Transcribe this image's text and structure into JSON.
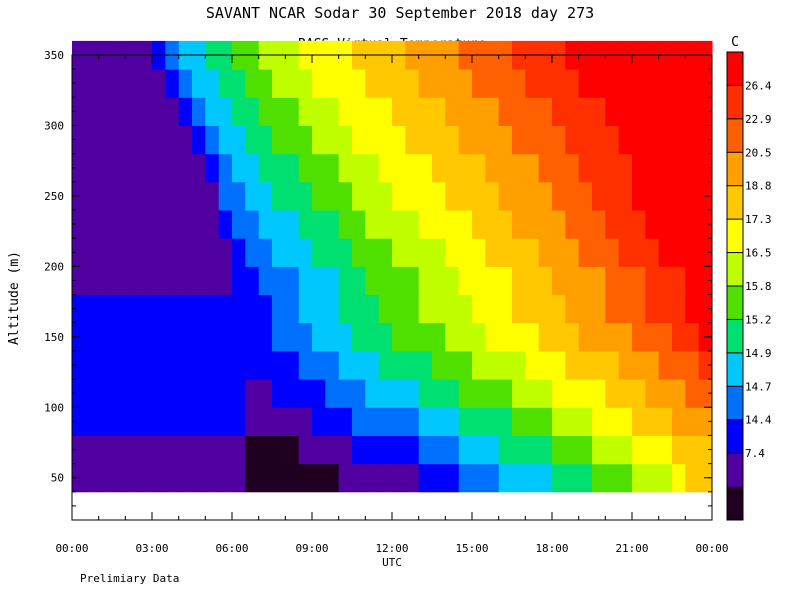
{
  "header": {
    "title": "SAVANT   NCAR Sodar   30 September 2018   day 273",
    "subtitle": "RASS Virtual Temperature"
  },
  "footer_note": "Prelimiary Data",
  "chart_data": {
    "type": "heatmap",
    "title": "RASS Virtual Temperature",
    "xlabel": "UTC",
    "ylabel": "Altitude (m)",
    "x_ticks": [
      "00:00",
      "03:00",
      "06:00",
      "09:00",
      "12:00",
      "15:00",
      "18:00",
      "21:00",
      "00:00"
    ],
    "xlim_hours": [
      0,
      24
    ],
    "y_ticks": [
      "50",
      "100",
      "150",
      "200",
      "250",
      "300",
      "350"
    ],
    "ylim": [
      20,
      350
    ],
    "colorbar": {
      "unit_label": "C",
      "tick_labels": [
        "26.4",
        "22.9",
        "20.5",
        "18.8",
        "17.3",
        "16.5",
        "15.8",
        "15.2",
        "14.9",
        "14.7",
        "14.4",
        "7.4"
      ],
      "colors": [
        "#ff0000",
        "#ff3000",
        "#ff6000",
        "#ffa000",
        "#ffc800",
        "#ffff00",
        "#c0ff00",
        "#50e000",
        "#00e070",
        "#00c8ff",
        "#0070ff",
        "#0000ff",
        "#5000a0",
        "#200020"
      ]
    },
    "grid": {
      "hour_step": 0.5,
      "altitudes": [
        40,
        60,
        80,
        100,
        120,
        140,
        160,
        180,
        200,
        220,
        240,
        260,
        280,
        300,
        320,
        340
      ],
      "values": [
        [
          12,
          12,
          12,
          12,
          12,
          12,
          12,
          12,
          12,
          12,
          12,
          12,
          12,
          13,
          13,
          13,
          13,
          13,
          13,
          13,
          12,
          12,
          12,
          12,
          12,
          12,
          11,
          11,
          11,
          10,
          10,
          10,
          9,
          9,
          9,
          9,
          8,
          8,
          8,
          7,
          7,
          7,
          6,
          6,
          6,
          5,
          4,
          4,
          4
        ],
        [
          12,
          12,
          12,
          12,
          12,
          12,
          12,
          12,
          12,
          12,
          12,
          12,
          12,
          13,
          13,
          13,
          13,
          12,
          12,
          12,
          12,
          11,
          11,
          11,
          11,
          11,
          10,
          10,
          10,
          9,
          9,
          9,
          8,
          8,
          8,
          8,
          7,
          7,
          7,
          6,
          6,
          6,
          5,
          5,
          5,
          4,
          4,
          4,
          4
        ],
        [
          11,
          11,
          11,
          11,
          11,
          11,
          11,
          11,
          11,
          11,
          11,
          11,
          11,
          12,
          12,
          12,
          12,
          12,
          11,
          11,
          11,
          10,
          10,
          10,
          10,
          10,
          9,
          9,
          9,
          8,
          8,
          8,
          8,
          7,
          7,
          7,
          6,
          6,
          6,
          5,
          5,
          5,
          4,
          4,
          4,
          3,
          3,
          3,
          3
        ],
        [
          11,
          11,
          11,
          11,
          11,
          11,
          11,
          11,
          11,
          11,
          11,
          11,
          11,
          12,
          12,
          11,
          11,
          11,
          11,
          10,
          10,
          10,
          9,
          9,
          9,
          9,
          8,
          8,
          8,
          7,
          7,
          7,
          7,
          6,
          6,
          6,
          5,
          5,
          5,
          5,
          4,
          4,
          4,
          3,
          3,
          3,
          2,
          2,
          2
        ],
        [
          11,
          11,
          11,
          11,
          11,
          11,
          11,
          11,
          11,
          11,
          11,
          11,
          11,
          11,
          11,
          11,
          11,
          10,
          10,
          10,
          9,
          9,
          9,
          8,
          8,
          8,
          8,
          7,
          7,
          7,
          6,
          6,
          6,
          6,
          5,
          5,
          5,
          4,
          4,
          4,
          4,
          3,
          3,
          3,
          2,
          2,
          2,
          1,
          1
        ],
        [
          11,
          11,
          11,
          11,
          11,
          11,
          11,
          11,
          11,
          11,
          11,
          11,
          11,
          11,
          11,
          10,
          10,
          10,
          9,
          9,
          9,
          8,
          8,
          8,
          7,
          7,
          7,
          7,
          6,
          6,
          6,
          5,
          5,
          5,
          5,
          4,
          4,
          4,
          3,
          3,
          3,
          3,
          2,
          2,
          2,
          1,
          1,
          0,
          0
        ],
        [
          11,
          11,
          11,
          11,
          11,
          11,
          11,
          11,
          11,
          11,
          11,
          11,
          11,
          11,
          11,
          10,
          10,
          9,
          9,
          9,
          8,
          8,
          8,
          7,
          7,
          7,
          6,
          6,
          6,
          6,
          5,
          5,
          5,
          4,
          4,
          4,
          4,
          3,
          3,
          3,
          2,
          2,
          2,
          1,
          1,
          1,
          0,
          0,
          0
        ],
        [
          12,
          12,
          12,
          12,
          12,
          12,
          12,
          12,
          12,
          12,
          12,
          12,
          11,
          11,
          10,
          10,
          10,
          9,
          9,
          9,
          8,
          8,
          7,
          7,
          7,
          7,
          6,
          6,
          6,
          5,
          5,
          5,
          5,
          4,
          4,
          4,
          3,
          3,
          3,
          3,
          2,
          2,
          2,
          1,
          1,
          1,
          0,
          0,
          0
        ],
        [
          12,
          12,
          12,
          12,
          12,
          12,
          12,
          12,
          12,
          12,
          12,
          12,
          11,
          10,
          10,
          9,
          9,
          9,
          8,
          8,
          8,
          7,
          7,
          7,
          6,
          6,
          6,
          6,
          5,
          5,
          5,
          4,
          4,
          4,
          4,
          3,
          3,
          3,
          2,
          2,
          2,
          1,
          1,
          1,
          0,
          0,
          0,
          0,
          0
        ],
        [
          12,
          12,
          12,
          12,
          12,
          12,
          12,
          12,
          12,
          12,
          12,
          11,
          10,
          10,
          9,
          9,
          9,
          8,
          8,
          8,
          7,
          7,
          6,
          6,
          6,
          6,
          5,
          5,
          5,
          5,
          4,
          4,
          4,
          3,
          3,
          3,
          3,
          2,
          2,
          2,
          1,
          1,
          1,
          0,
          0,
          0,
          0,
          0,
          0
        ],
        [
          12,
          12,
          12,
          12,
          12,
          12,
          12,
          12,
          12,
          12,
          12,
          10,
          10,
          9,
          9,
          8,
          8,
          8,
          7,
          7,
          7,
          6,
          6,
          6,
          5,
          5,
          5,
          5,
          4,
          4,
          4,
          4,
          3,
          3,
          3,
          3,
          2,
          2,
          2,
          1,
          1,
          1,
          0,
          0,
          0,
          0,
          0,
          0,
          0
        ],
        [
          12,
          12,
          12,
          12,
          12,
          12,
          12,
          12,
          12,
          12,
          11,
          10,
          9,
          9,
          8,
          8,
          8,
          7,
          7,
          7,
          6,
          6,
          6,
          5,
          5,
          5,
          5,
          4,
          4,
          4,
          4,
          3,
          3,
          3,
          3,
          2,
          2,
          2,
          1,
          1,
          1,
          1,
          0,
          0,
          0,
          0,
          0,
          0,
          0
        ],
        [
          12,
          12,
          12,
          12,
          12,
          12,
          12,
          12,
          12,
          11,
          10,
          9,
          9,
          8,
          8,
          7,
          7,
          7,
          6,
          6,
          6,
          5,
          5,
          5,
          5,
          4,
          4,
          4,
          4,
          3,
          3,
          3,
          3,
          2,
          2,
          2,
          2,
          1,
          1,
          1,
          1,
          0,
          0,
          0,
          0,
          0,
          0,
          0,
          0
        ],
        [
          12,
          12,
          12,
          12,
          12,
          12,
          12,
          12,
          11,
          10,
          9,
          9,
          8,
          8,
          7,
          7,
          7,
          6,
          6,
          6,
          5,
          5,
          5,
          5,
          4,
          4,
          4,
          4,
          3,
          3,
          3,
          3,
          2,
          2,
          2,
          2,
          1,
          1,
          1,
          1,
          0,
          0,
          0,
          0,
          0,
          0,
          0,
          0,
          0
        ],
        [
          12,
          12,
          12,
          12,
          12,
          12,
          12,
          11,
          10,
          9,
          9,
          8,
          8,
          7,
          7,
          6,
          6,
          6,
          5,
          5,
          5,
          5,
          4,
          4,
          4,
          4,
          3,
          3,
          3,
          3,
          2,
          2,
          2,
          2,
          1,
          1,
          1,
          1,
          0,
          0,
          0,
          0,
          0,
          0,
          0,
          0,
          0,
          0,
          0
        ],
        [
          12,
          12,
          12,
          12,
          12,
          12,
          11,
          10,
          9,
          9,
          8,
          8,
          7,
          7,
          6,
          6,
          6,
          5,
          5,
          5,
          5,
          4,
          4,
          4,
          4,
          3,
          3,
          3,
          3,
          2,
          2,
          2,
          2,
          1,
          1,
          1,
          1,
          0,
          0,
          0,
          0,
          0,
          0,
          0,
          0,
          0,
          0,
          0,
          0
        ]
      ],
      "data_note": "values are colour-class indices into colorbar.colors (0 = warmest), rows bottom-to-top"
    }
  }
}
